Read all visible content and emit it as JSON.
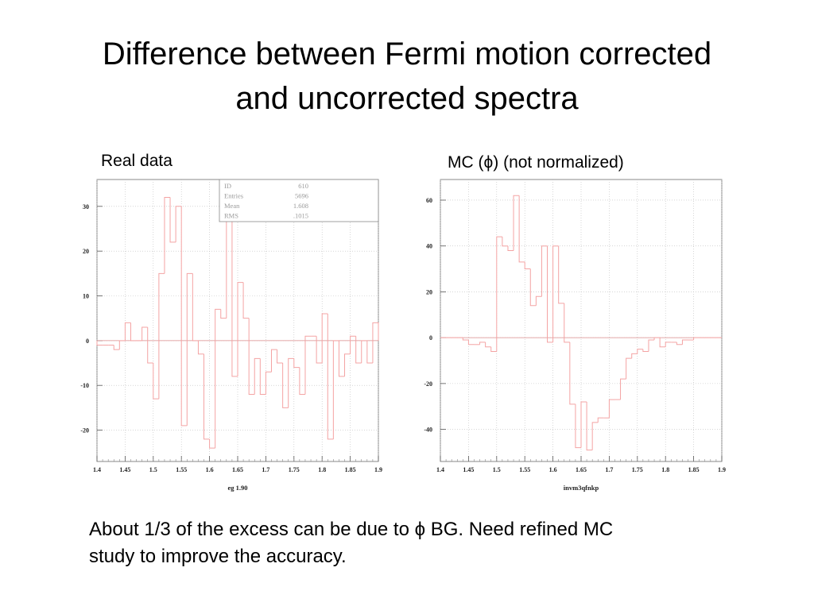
{
  "slide": {
    "title_line1": "Difference between Fermi motion corrected",
    "title_line2": "and uncorrected spectra",
    "caption_line1": "About 1/3 of the excess can be due to ϕ BG. Need refined MC",
    "caption_line2": "study to improve the accuracy."
  },
  "panels": {
    "left_label": "Real data",
    "right_label": "MC (ϕ) (not normalized)"
  },
  "colors": {
    "hist": "#f4a3a3",
    "zero_line": "#d98a8a",
    "grid": "#bdbdbd",
    "frame": "#888888",
    "stats_text": "#9a9a9a"
  },
  "stats": {
    "rows": [
      {
        "key": "ID",
        "value": "610"
      },
      {
        "key": "Entries",
        "value": "5696"
      },
      {
        "key": "Mean",
        "value": "1.608"
      },
      {
        "key": "RMS",
        "value": ".1015"
      }
    ]
  },
  "chart_data": [
    {
      "type": "histogram",
      "xlabel": "eg 1.90",
      "ylabel": "",
      "xlim": [
        1.4,
        1.9
      ],
      "ylim": [
        -27,
        36
      ],
      "grid": true,
      "xticks": [
        "1.4",
        "1.45",
        "1.5",
        "1.55",
        "1.6",
        "1.65",
        "1.7",
        "1.75",
        "1.8",
        "1.85",
        "1.9"
      ],
      "yticks": [
        "30",
        "20",
        "10",
        "0",
        "-10",
        "-20"
      ],
      "bin_width": 0.01,
      "x": [
        1.4,
        1.41,
        1.42,
        1.43,
        1.44,
        1.45,
        1.46,
        1.47,
        1.48,
        1.49,
        1.5,
        1.51,
        1.52,
        1.53,
        1.54,
        1.55,
        1.56,
        1.57,
        1.58,
        1.59,
        1.6,
        1.61,
        1.62,
        1.63,
        1.64,
        1.65,
        1.66,
        1.67,
        1.68,
        1.69,
        1.7,
        1.71,
        1.72,
        1.73,
        1.74,
        1.75,
        1.76,
        1.77,
        1.78,
        1.79,
        1.8,
        1.81,
        1.82,
        1.83,
        1.84,
        1.85,
        1.86,
        1.87,
        1.88,
        1.89
      ],
      "values": [
        -1,
        -1,
        -1,
        -2,
        0,
        4,
        0,
        0,
        3,
        -5,
        -13,
        15,
        32,
        22,
        30,
        -19,
        15,
        0,
        -3,
        -22,
        -24,
        7,
        5,
        30,
        -8,
        13,
        5,
        -12,
        -4,
        -12,
        -7,
        -2,
        -5,
        -15,
        -4,
        -6,
        -12,
        1,
        1,
        -5,
        6,
        -22,
        0,
        -8,
        -3,
        1,
        -5,
        0,
        -5,
        4
      ],
      "stats": {
        "ID": 610,
        "Entries": 5696,
        "Mean": 1.608,
        "RMS": 0.1015
      }
    },
    {
      "type": "histogram",
      "xlabel": "invm3qfnkp",
      "ylabel": "",
      "xlim": [
        1.4,
        1.9
      ],
      "ylim": [
        -54,
        69
      ],
      "grid": true,
      "xticks": [
        "1.4",
        "1.45",
        "1.5",
        "1.55",
        "1.6",
        "1.65",
        "1.7",
        "1.75",
        "1.8",
        "1.85",
        "1.9"
      ],
      "yticks": [
        "60",
        "40",
        "20",
        "0",
        "-20",
        "-40"
      ],
      "bin_width": 0.01,
      "x": [
        1.4,
        1.41,
        1.42,
        1.43,
        1.44,
        1.45,
        1.46,
        1.47,
        1.48,
        1.49,
        1.5,
        1.51,
        1.52,
        1.53,
        1.54,
        1.55,
        1.56,
        1.57,
        1.58,
        1.59,
        1.6,
        1.61,
        1.62,
        1.63,
        1.64,
        1.65,
        1.66,
        1.67,
        1.68,
        1.69,
        1.7,
        1.71,
        1.72,
        1.73,
        1.74,
        1.75,
        1.76,
        1.77,
        1.78,
        1.79,
        1.8,
        1.81,
        1.82,
        1.83,
        1.84,
        1.85,
        1.86,
        1.87,
        1.88,
        1.89
      ],
      "values": [
        0,
        0,
        0,
        0,
        -1,
        -3,
        -3,
        -2,
        -4,
        -6,
        44,
        40,
        38,
        62,
        33,
        30,
        14,
        18,
        40,
        -2,
        40,
        15,
        -2,
        -29,
        -48,
        -28,
        -49,
        -37,
        -35,
        -35,
        -27,
        -27,
        -18,
        -9,
        -7,
        -5,
        -6,
        -1,
        0,
        -4,
        -2,
        -2,
        -3,
        -1,
        -1,
        0,
        0,
        0,
        0,
        0
      ]
    }
  ]
}
